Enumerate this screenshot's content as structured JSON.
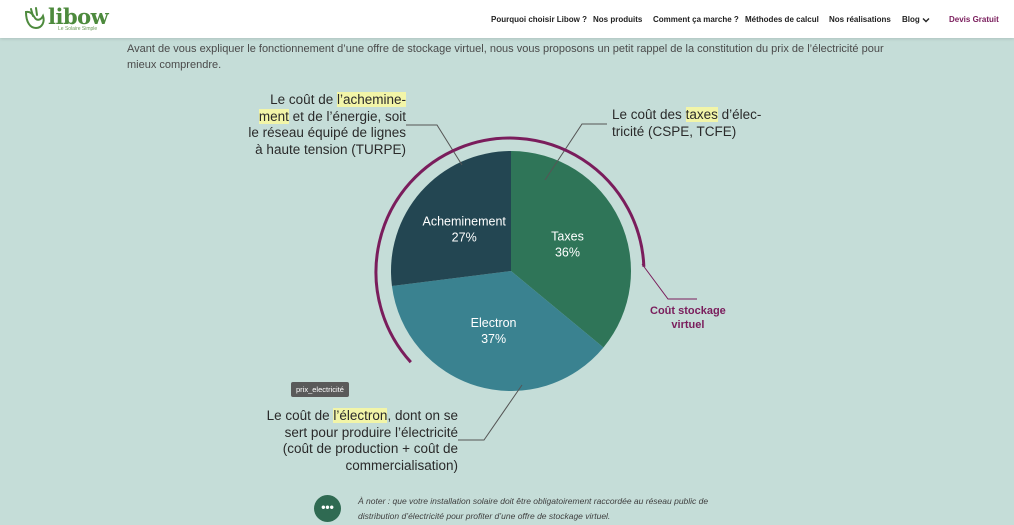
{
  "brand": {
    "name": "libow",
    "tagline": "Le Solaire Simple",
    "color": "#4d8a3d"
  },
  "nav": {
    "items": [
      "Pourquoi choisir Libow ?",
      "Nos produits",
      "Comment ça marche ?",
      "Méthodes de calcul",
      "Nos réalisations",
      "Blog"
    ],
    "cta": "Devis Gratuit",
    "cta_color": "#7a1d5c"
  },
  "intro": "Avant de vous expliquer le fonctionnement d’une offre de stockage virtuel, nous vous proposons un petit rappel de la constitution du prix de l’électricité pour mieux comprendre.",
  "annotations": {
    "acheminement": {
      "line1_plain": "Le coût de ",
      "line1_hl": "l’achemine-",
      "line2_hl": "ment",
      "line2_plain": " et de l’énergie, soit",
      "line3": "le réseau équipé de lignes",
      "line4": "à haute tension (TURPE)"
    },
    "taxes": {
      "line1_plain": "Le coût des ",
      "line1_hl": "taxes",
      "line1_end": " d’élec-",
      "line2": "tricité (CSPE, TCFE)"
    },
    "electron": {
      "line1_plain": "Le coût de ",
      "line1_hl": "l’électron",
      "line1_end": ", dont on se",
      "line2": "sert pour produire l’électricité",
      "line3": "(coût de production + coût de",
      "line4": "commercialisation)"
    }
  },
  "virtual_storage": {
    "line1": "Coût stockage",
    "line2": "virtuel",
    "color": "#7a1d5c"
  },
  "image_badge": "prix_electricité",
  "note": {
    "button": "•••",
    "text": "À noter : que votre installation solaire doit être obligatoirement  raccordée au réseau public de distribution d’électricité pour profiter d’une offre de stockage virtuel."
  },
  "chart_data": {
    "type": "pie",
    "title": "",
    "slices": [
      {
        "label": "Taxes",
        "value": 36,
        "display": "36%",
        "color": "#2f7558"
      },
      {
        "label": "Electron",
        "value": 37,
        "display": "37%",
        "color": "#3a8290"
      },
      {
        "label": "Acheminement",
        "value": 27,
        "display": "27%",
        "color": "#234652"
      }
    ],
    "start_angle_deg": 0,
    "direction": "clockwise"
  }
}
